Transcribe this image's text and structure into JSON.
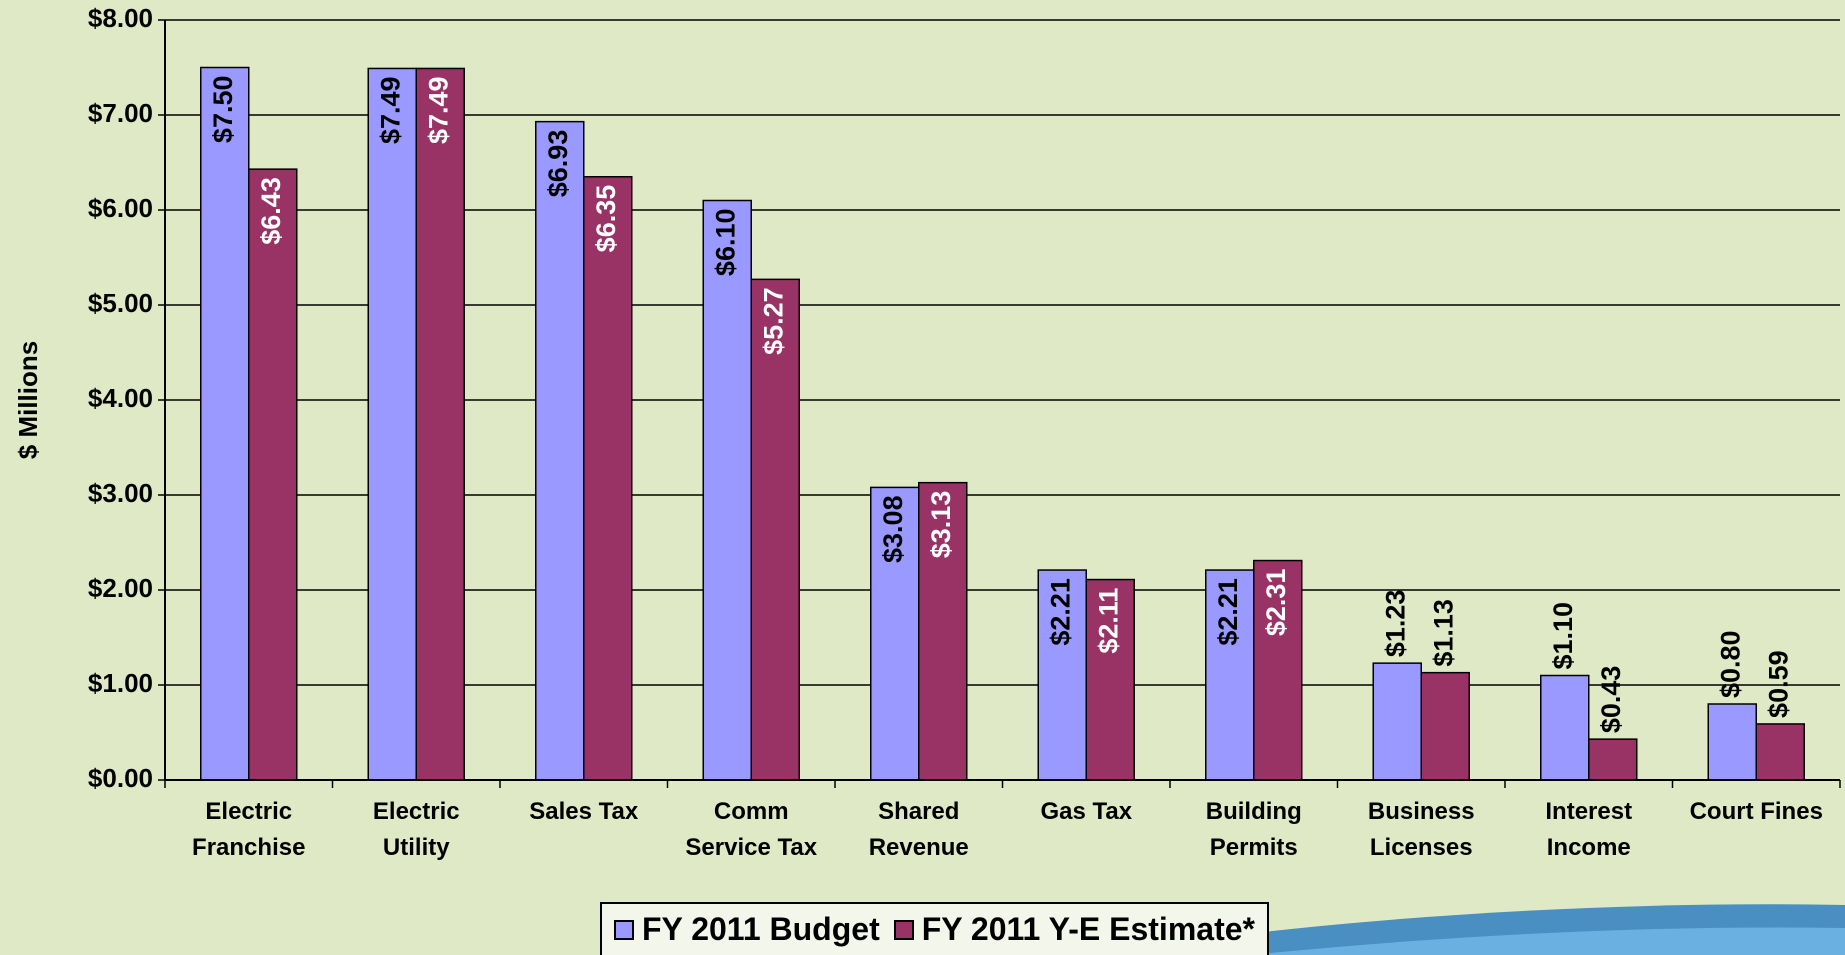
{
  "chart_data": {
    "type": "bar",
    "y_label": "$ Millions",
    "categories": [
      "Electric\nFranchise",
      "Electric\nUtility",
      "Sales Tax",
      "Comm\nService Tax",
      "Shared\nRevenue",
      "Gas Tax",
      "Building\nPermits",
      "Business\nLicenses",
      "Interest\nIncome",
      "Court Fines"
    ],
    "series": [
      {
        "name": "FY 2011 Budget",
        "color": "#9999ff",
        "values": [
          7.5,
          7.49,
          6.93,
          6.1,
          3.08,
          2.21,
          2.21,
          1.23,
          1.1,
          0.8
        ],
        "value_labels": [
          "$7.50",
          "$7.49",
          "$6.93",
          "$6.10",
          "$3.08",
          "$2.21",
          "$2.21",
          "$1.23",
          "$1.10",
          "$0.80"
        ]
      },
      {
        "name": "FY 2011 Y-E Estimate*",
        "color": "#993366",
        "values": [
          6.43,
          7.49,
          6.35,
          5.27,
          3.13,
          2.11,
          2.31,
          1.13,
          0.43,
          0.59
        ],
        "value_labels": [
          "$6.43",
          "$7.49",
          "$6.35",
          "$5.27",
          "$3.13",
          "$2.11",
          "$2.31",
          "$1.13",
          "$0.43",
          "$0.59"
        ]
      }
    ],
    "ylim": [
      0,
      8
    ],
    "yticks": [
      {
        "value": 0,
        "label": "$0.00"
      },
      {
        "value": 1,
        "label": "$1.00"
      },
      {
        "value": 2,
        "label": "$2.00"
      },
      {
        "value": 3,
        "label": "$3.00"
      },
      {
        "value": 4,
        "label": "$4.00"
      },
      {
        "value": 5,
        "label": "$5.00"
      },
      {
        "value": 6,
        "label": "$6.00"
      },
      {
        "value": 7,
        "label": "$7.00"
      },
      {
        "value": 8,
        "label": "$8.00"
      }
    ],
    "grid": true,
    "legend": "bottom"
  }
}
